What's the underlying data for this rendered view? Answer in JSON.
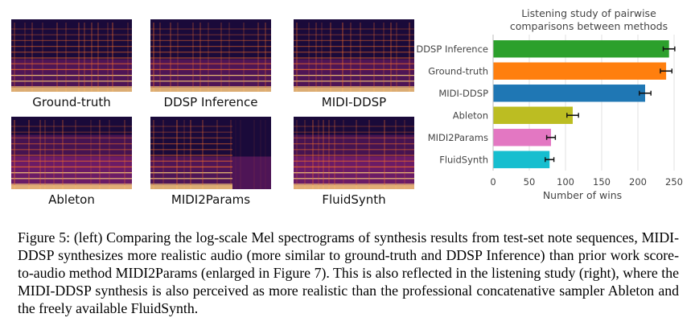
{
  "figure": {
    "spectrograms": [
      {
        "label": "Ground-truth",
        "palette": "bright"
      },
      {
        "label": "DDSP Inference",
        "palette": "bright"
      },
      {
        "label": "MIDI-DDSP",
        "palette": "bright"
      },
      {
        "label": "Ableton",
        "palette": "warm"
      },
      {
        "label": "MIDI2Params",
        "palette": "dark-right"
      },
      {
        "label": "FluidSynth",
        "palette": "warm"
      }
    ],
    "colors": {
      "spec_bg": "#1a0a3a",
      "spec_mid": "#7a1f6e",
      "spec_hot": "#f06a2a",
      "spec_peak": "#ffd27a"
    }
  },
  "chart_data": {
    "type": "bar",
    "orientation": "horizontal",
    "title": "Listening study of pairwise comparisons between methods",
    "title_lines": [
      "Listening study of pairwise",
      "comparisons between methods"
    ],
    "categories": [
      "DDSP Inference",
      "Ground-truth",
      "MIDI-DDSP",
      "Ableton",
      "MIDI2Params",
      "FluidSynth"
    ],
    "values": [
      243,
      239,
      210,
      110,
      80,
      78
    ],
    "errors": [
      8,
      8,
      8,
      8,
      6,
      6
    ],
    "colors": [
      "#2ca02c",
      "#ff7f0e",
      "#1f77b4",
      "#bcbd22",
      "#e377c2",
      "#17becf"
    ],
    "xlabel": "Number of wins",
    "xlim": [
      0,
      260
    ],
    "xticks": [
      0,
      50,
      100,
      150,
      200,
      250
    ],
    "grid": "x"
  },
  "caption": "Figure 5: (left) Comparing the log-scale Mel spectrograms of synthesis results from test-set note sequences, MIDI-DDSP synthesizes more realistic audio (more similar to ground-truth and DDSP Inference) than prior work score-to-audio method MIDI2Params (enlarged in Figure 7). This is also reflected in the listening study (right), where the MIDI-DDSP synthesis is also perceived as more realistic than the professional concatenative sampler Ableton and the freely available FluidSynth."
}
